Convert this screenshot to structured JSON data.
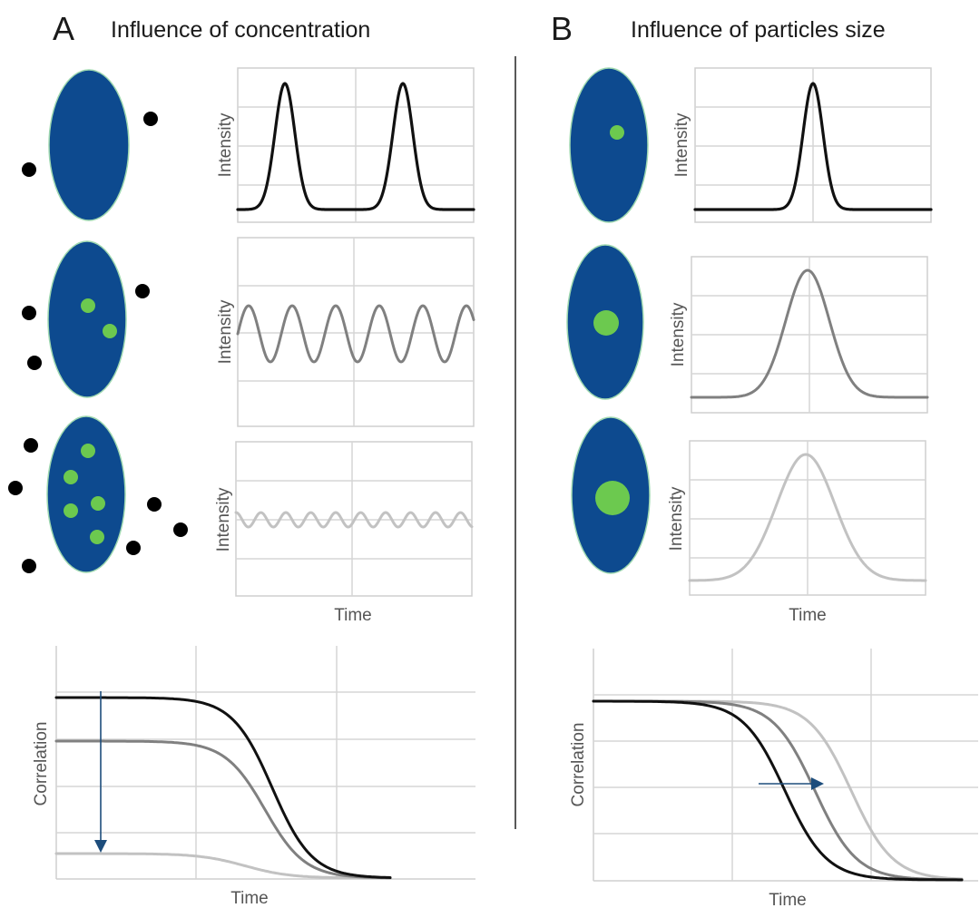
{
  "panels": {
    "a": {
      "letter": "A",
      "title": "Influence of concentration"
    },
    "b": {
      "letter": "B",
      "title": "Influence of particles size"
    }
  },
  "labels": {
    "intensity": "Intensity",
    "time": "Time",
    "correlation": "Correlation"
  },
  "colors": {
    "cell_fill": "#0d4a8f",
    "cell_outline": "#9fd8b0",
    "particle_inside": "#6cc94f",
    "particle_outside": "#000000",
    "curve_dark": "#111111",
    "curve_mid": "#808080",
    "curve_light": "#c2c2c2",
    "arrow": "#1d4d7c"
  }
}
